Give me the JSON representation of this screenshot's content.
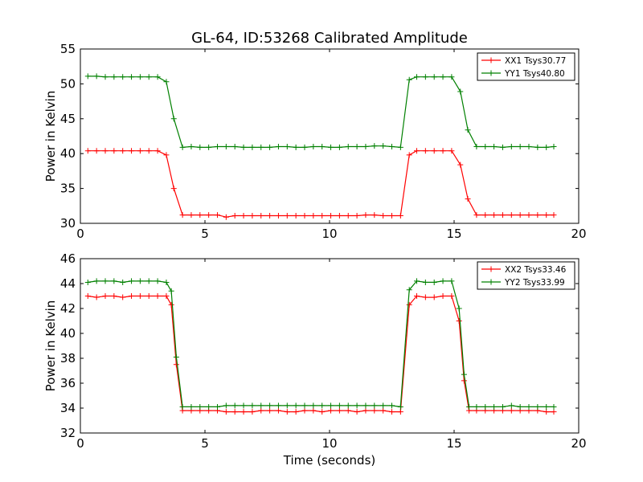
{
  "title": "GL-64, ID:53268 Calibrated Amplitude",
  "xlabel_bottom": "Time (seconds)",
  "colors": {
    "xx": "#ff0000",
    "yy": "#008000"
  },
  "chart_data": [
    {
      "type": "line",
      "title": "GL-64, ID:53268 Calibrated Amplitude",
      "xlabel": "",
      "ylabel": "Power in Kelvin",
      "xlim": [
        0,
        20
      ],
      "ylim": [
        30,
        55
      ],
      "xticks": [
        "0",
        "5",
        "10",
        "15",
        "20"
      ],
      "yticks": [
        "30",
        "35",
        "40",
        "45",
        "50",
        "55"
      ],
      "legend": "top-right",
      "grid": false,
      "x": [
        0.3,
        0.65,
        1.0,
        1.35,
        1.7,
        2.05,
        2.4,
        2.75,
        3.1,
        3.45,
        3.75,
        4.1,
        4.45,
        4.8,
        5.15,
        5.5,
        5.85,
        6.2,
        6.55,
        6.9,
        7.25,
        7.6,
        7.95,
        8.3,
        8.65,
        9.0,
        9.35,
        9.7,
        10.05,
        10.4,
        10.75,
        11.1,
        11.45,
        11.8,
        12.15,
        12.5,
        12.85,
        13.2,
        13.5,
        13.85,
        14.2,
        14.55,
        14.9,
        15.25,
        15.55,
        15.9,
        16.25,
        16.6,
        16.95,
        17.3,
        17.65,
        18.0,
        18.35,
        18.7,
        19.0
      ],
      "series": [
        {
          "name": "XX1 Tsys30.77",
          "color": "#ff0000",
          "values": [
            40.4,
            40.4,
            40.4,
            40.4,
            40.4,
            40.4,
            40.4,
            40.4,
            40.4,
            39.8,
            35.0,
            31.2,
            31.2,
            31.2,
            31.2,
            31.2,
            30.9,
            31.1,
            31.1,
            31.1,
            31.1,
            31.1,
            31.1,
            31.1,
            31.1,
            31.1,
            31.1,
            31.1,
            31.1,
            31.1,
            31.1,
            31.1,
            31.2,
            31.2,
            31.1,
            31.1,
            31.1,
            39.8,
            40.4,
            40.4,
            40.4,
            40.4,
            40.4,
            38.4,
            33.5,
            31.2,
            31.2,
            31.2,
            31.2,
            31.2,
            31.2,
            31.2,
            31.2,
            31.2,
            31.2
          ]
        },
        {
          "name": "YY1 Tsys40.80",
          "color": "#008000",
          "values": [
            51.1,
            51.1,
            51.0,
            51.0,
            51.0,
            51.0,
            51.0,
            51.0,
            51.0,
            50.3,
            45.0,
            40.9,
            41.0,
            40.9,
            40.9,
            41.0,
            41.0,
            41.0,
            40.9,
            40.9,
            40.9,
            40.9,
            41.0,
            41.0,
            40.9,
            40.9,
            41.0,
            41.0,
            40.9,
            40.9,
            41.0,
            41.0,
            41.0,
            41.1,
            41.1,
            41.0,
            40.9,
            50.6,
            51.0,
            51.0,
            51.0,
            51.0,
            51.0,
            48.9,
            43.4,
            41.0,
            41.0,
            41.0,
            40.9,
            41.0,
            41.0,
            41.0,
            40.9,
            40.9,
            41.0
          ]
        }
      ]
    },
    {
      "type": "line",
      "title": "",
      "xlabel": "Time (seconds)",
      "ylabel": "Power in Kelvin",
      "xlim": [
        0,
        20
      ],
      "ylim": [
        32,
        46
      ],
      "xticks": [
        "0",
        "5",
        "10",
        "15",
        "20"
      ],
      "yticks": [
        "32",
        "34",
        "36",
        "38",
        "40",
        "42",
        "44",
        "46"
      ],
      "legend": "top-right",
      "grid": false,
      "x": [
        0.3,
        0.65,
        1.0,
        1.35,
        1.7,
        2.05,
        2.4,
        2.75,
        3.1,
        3.45,
        3.65,
        3.85,
        4.1,
        4.45,
        4.8,
        5.15,
        5.5,
        5.85,
        6.2,
        6.55,
        6.9,
        7.25,
        7.6,
        7.95,
        8.3,
        8.65,
        9.0,
        9.35,
        9.7,
        10.05,
        10.4,
        10.75,
        11.1,
        11.45,
        11.8,
        12.15,
        12.5,
        12.85,
        13.2,
        13.5,
        13.85,
        14.2,
        14.55,
        14.9,
        15.2,
        15.4,
        15.6,
        15.9,
        16.25,
        16.6,
        16.95,
        17.3,
        17.65,
        18.0,
        18.35,
        18.7,
        19.0
      ],
      "series": [
        {
          "name": "XX2 Tsys33.46",
          "color": "#ff0000",
          "values": [
            43.0,
            42.9,
            43.0,
            43.0,
            42.9,
            43.0,
            43.0,
            43.0,
            43.0,
            43.0,
            42.3,
            37.5,
            33.8,
            33.8,
            33.8,
            33.8,
            33.8,
            33.7,
            33.7,
            33.7,
            33.7,
            33.8,
            33.8,
            33.8,
            33.7,
            33.7,
            33.8,
            33.8,
            33.7,
            33.8,
            33.8,
            33.8,
            33.7,
            33.8,
            33.8,
            33.8,
            33.7,
            33.7,
            42.3,
            43.0,
            42.9,
            42.9,
            43.0,
            43.0,
            41.0,
            36.2,
            33.8,
            33.8,
            33.8,
            33.8,
            33.8,
            33.8,
            33.8,
            33.8,
            33.8,
            33.7,
            33.7
          ]
        },
        {
          "name": "YY2 Tsys33.99",
          "color": "#008000",
          "values": [
            44.1,
            44.2,
            44.2,
            44.2,
            44.1,
            44.2,
            44.2,
            44.2,
            44.2,
            44.1,
            43.4,
            38.1,
            34.1,
            34.1,
            34.1,
            34.1,
            34.1,
            34.2,
            34.2,
            34.2,
            34.2,
            34.2,
            34.2,
            34.2,
            34.2,
            34.2,
            34.2,
            34.2,
            34.2,
            34.2,
            34.2,
            34.2,
            34.2,
            34.2,
            34.2,
            34.2,
            34.2,
            34.1,
            43.5,
            44.2,
            44.1,
            44.1,
            44.2,
            44.2,
            42.0,
            36.7,
            34.1,
            34.1,
            34.1,
            34.1,
            34.1,
            34.2,
            34.1,
            34.1,
            34.1,
            34.1,
            34.1
          ]
        }
      ]
    }
  ]
}
